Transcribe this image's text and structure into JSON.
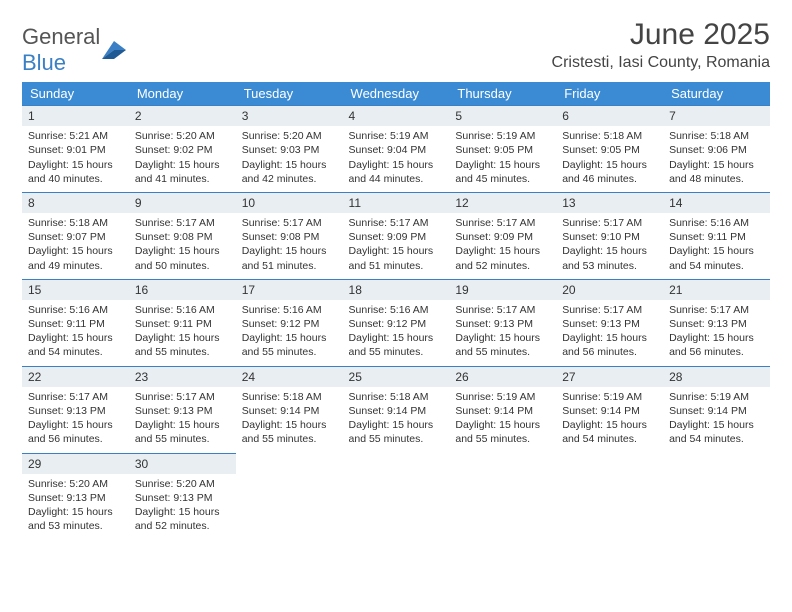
{
  "brand": {
    "word1": "General",
    "word2": "Blue"
  },
  "title": "June 2025",
  "location": "Cristesti, Iasi County, Romania",
  "colors": {
    "header_bg": "#3b8bd4",
    "header_text": "#ffffff",
    "daynum_bg": "#e9eef2",
    "rule": "#3b7fc4",
    "brand_blue": "#3b7fc4",
    "text": "#333333"
  },
  "weekdays": [
    "Sunday",
    "Monday",
    "Tuesday",
    "Wednesday",
    "Thursday",
    "Friday",
    "Saturday"
  ],
  "days": [
    {
      "n": 1,
      "sr": "5:21 AM",
      "ss": "9:01 PM",
      "dl": "15 hours and 40 minutes."
    },
    {
      "n": 2,
      "sr": "5:20 AM",
      "ss": "9:02 PM",
      "dl": "15 hours and 41 minutes."
    },
    {
      "n": 3,
      "sr": "5:20 AM",
      "ss": "9:03 PM",
      "dl": "15 hours and 42 minutes."
    },
    {
      "n": 4,
      "sr": "5:19 AM",
      "ss": "9:04 PM",
      "dl": "15 hours and 44 minutes."
    },
    {
      "n": 5,
      "sr": "5:19 AM",
      "ss": "9:05 PM",
      "dl": "15 hours and 45 minutes."
    },
    {
      "n": 6,
      "sr": "5:18 AM",
      "ss": "9:05 PM",
      "dl": "15 hours and 46 minutes."
    },
    {
      "n": 7,
      "sr": "5:18 AM",
      "ss": "9:06 PM",
      "dl": "15 hours and 48 minutes."
    },
    {
      "n": 8,
      "sr": "5:18 AM",
      "ss": "9:07 PM",
      "dl": "15 hours and 49 minutes."
    },
    {
      "n": 9,
      "sr": "5:17 AM",
      "ss": "9:08 PM",
      "dl": "15 hours and 50 minutes."
    },
    {
      "n": 10,
      "sr": "5:17 AM",
      "ss": "9:08 PM",
      "dl": "15 hours and 51 minutes."
    },
    {
      "n": 11,
      "sr": "5:17 AM",
      "ss": "9:09 PM",
      "dl": "15 hours and 51 minutes."
    },
    {
      "n": 12,
      "sr": "5:17 AM",
      "ss": "9:09 PM",
      "dl": "15 hours and 52 minutes."
    },
    {
      "n": 13,
      "sr": "5:17 AM",
      "ss": "9:10 PM",
      "dl": "15 hours and 53 minutes."
    },
    {
      "n": 14,
      "sr": "5:16 AM",
      "ss": "9:11 PM",
      "dl": "15 hours and 54 minutes."
    },
    {
      "n": 15,
      "sr": "5:16 AM",
      "ss": "9:11 PM",
      "dl": "15 hours and 54 minutes."
    },
    {
      "n": 16,
      "sr": "5:16 AM",
      "ss": "9:11 PM",
      "dl": "15 hours and 55 minutes."
    },
    {
      "n": 17,
      "sr": "5:16 AM",
      "ss": "9:12 PM",
      "dl": "15 hours and 55 minutes."
    },
    {
      "n": 18,
      "sr": "5:16 AM",
      "ss": "9:12 PM",
      "dl": "15 hours and 55 minutes."
    },
    {
      "n": 19,
      "sr": "5:17 AM",
      "ss": "9:13 PM",
      "dl": "15 hours and 55 minutes."
    },
    {
      "n": 20,
      "sr": "5:17 AM",
      "ss": "9:13 PM",
      "dl": "15 hours and 56 minutes."
    },
    {
      "n": 21,
      "sr": "5:17 AM",
      "ss": "9:13 PM",
      "dl": "15 hours and 56 minutes."
    },
    {
      "n": 22,
      "sr": "5:17 AM",
      "ss": "9:13 PM",
      "dl": "15 hours and 56 minutes."
    },
    {
      "n": 23,
      "sr": "5:17 AM",
      "ss": "9:13 PM",
      "dl": "15 hours and 55 minutes."
    },
    {
      "n": 24,
      "sr": "5:18 AM",
      "ss": "9:14 PM",
      "dl": "15 hours and 55 minutes."
    },
    {
      "n": 25,
      "sr": "5:18 AM",
      "ss": "9:14 PM",
      "dl": "15 hours and 55 minutes."
    },
    {
      "n": 26,
      "sr": "5:19 AM",
      "ss": "9:14 PM",
      "dl": "15 hours and 55 minutes."
    },
    {
      "n": 27,
      "sr": "5:19 AM",
      "ss": "9:14 PM",
      "dl": "15 hours and 54 minutes."
    },
    {
      "n": 28,
      "sr": "5:19 AM",
      "ss": "9:14 PM",
      "dl": "15 hours and 54 minutes."
    },
    {
      "n": 29,
      "sr": "5:20 AM",
      "ss": "9:13 PM",
      "dl": "15 hours and 53 minutes."
    },
    {
      "n": 30,
      "sr": "5:20 AM",
      "ss": "9:13 PM",
      "dl": "15 hours and 52 minutes."
    }
  ],
  "labels": {
    "sunrise": "Sunrise:",
    "sunset": "Sunset:",
    "daylight": "Daylight:"
  },
  "layout": {
    "first_weekday_index": 0,
    "weeks": 5,
    "cols": 7
  }
}
